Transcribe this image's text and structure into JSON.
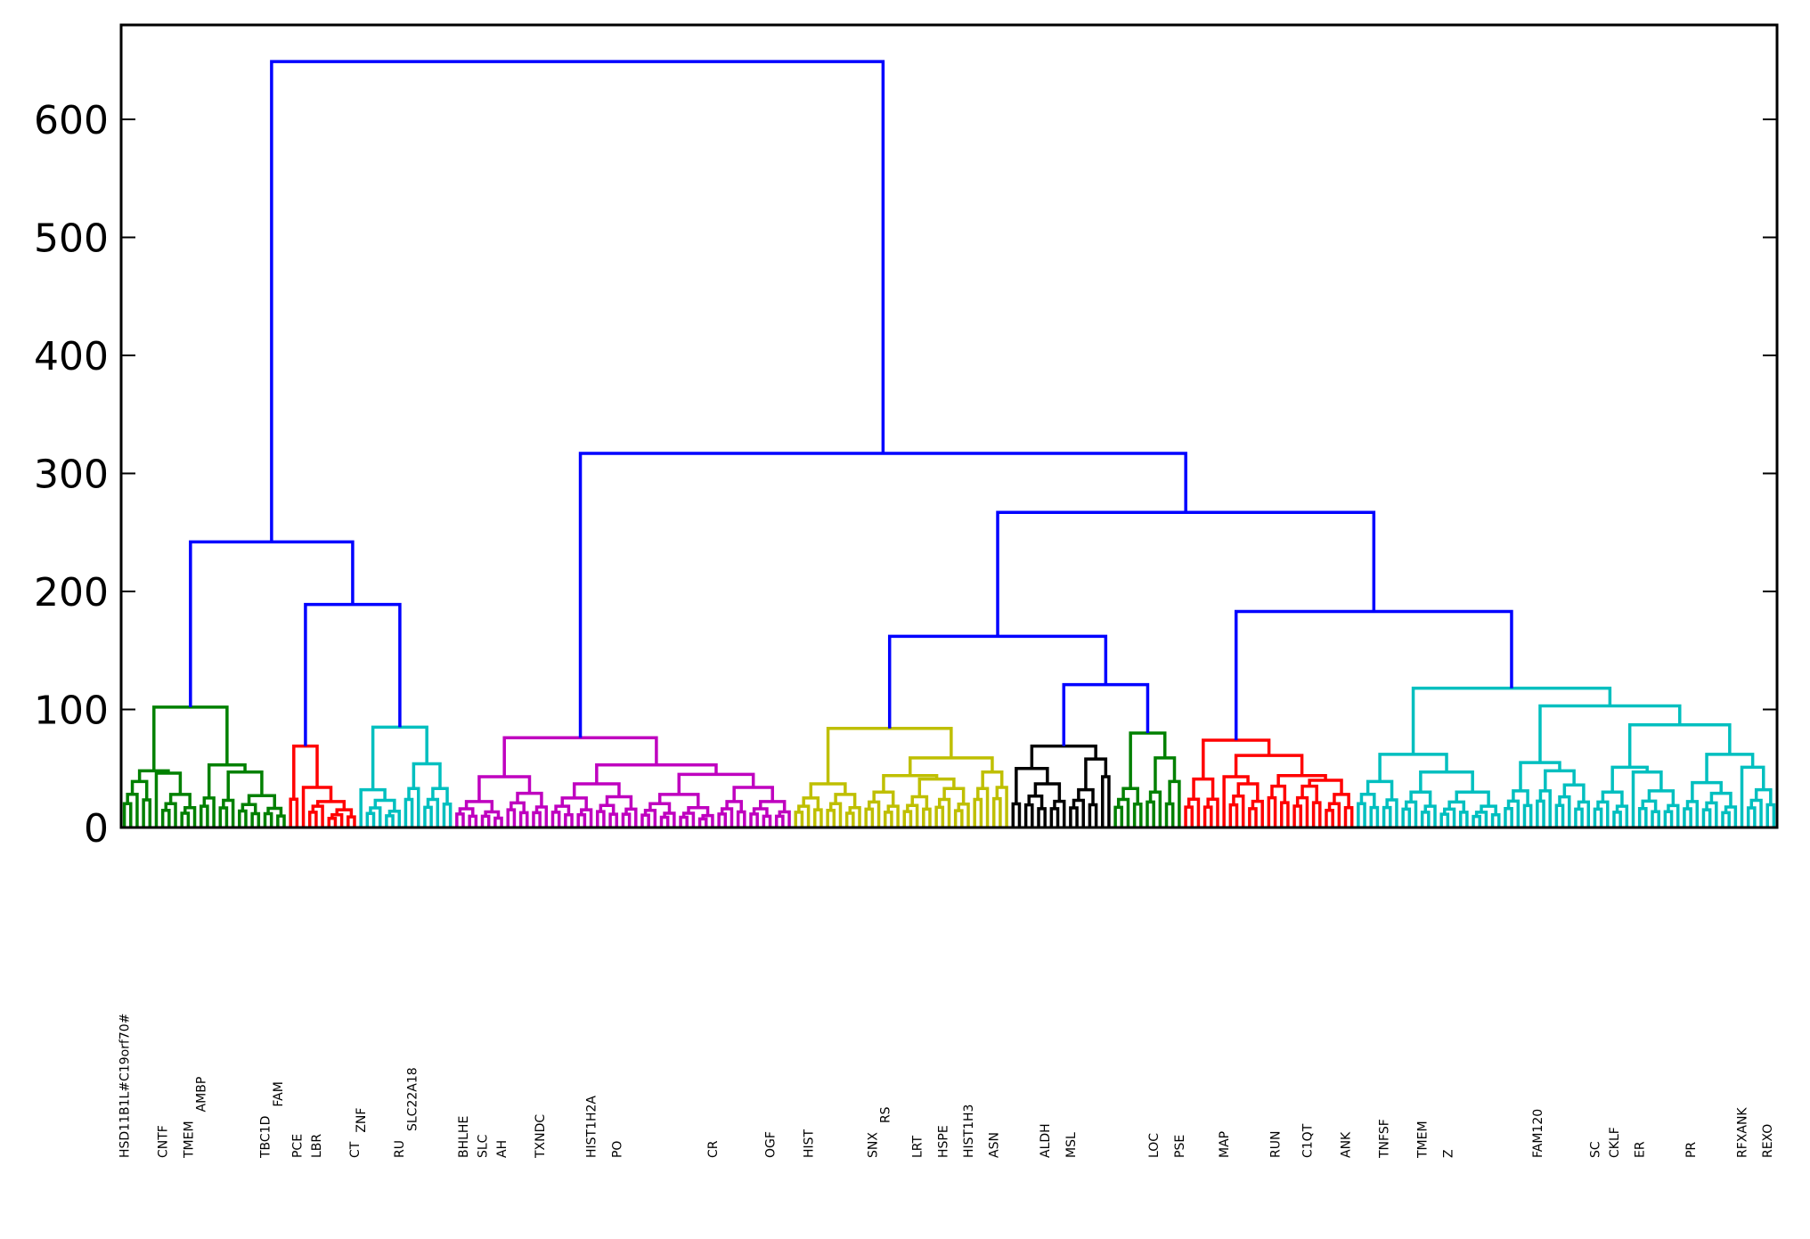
{
  "chart_data": {
    "type": "dendrogram",
    "title": "",
    "xlabel": "",
    "ylabel": "",
    "ylim": [
      0,
      680
    ],
    "yticks": [
      0,
      100,
      200,
      300,
      400,
      500,
      600
    ],
    "grid": false,
    "legend": "none",
    "above_threshold_color": "#0000ff",
    "leaf_count": 259,
    "tree": {
      "h": 649,
      "c": [
        {
          "h": 242,
          "c": [
            {
              "color": "#008000",
              "h": 102,
              "c": [
                {
                  "h": 48,
                  "c": [
                    {
                      "h": 39,
                      "n": 5
                    },
                    {
                      "h": 46,
                      "c": [
                        1,
                        {
                          "h": 28,
                          "n": 6
                        }
                      ]
                    }
                  ]
                },
                {
                  "h": 53,
                  "c": [
                    {
                      "h": 25,
                      "n": 3
                    },
                    {
                      "h": 47,
                      "c": [
                        {
                          "h": 23,
                          "n": 3
                        },
                        {
                          "h": 27,
                          "n": 8
                        }
                      ]
                    }
                  ]
                }
              ]
            },
            {
              "h": 189,
              "c": [
                {
                  "color": "#ff0000",
                  "h": 69,
                  "c": [
                    {
                      "h": 24,
                      "n": 2
                    },
                    {
                      "h": 34,
                      "c": [
                        1,
                        {
                          "h": 22,
                          "c": [
                            {
                              "h": 18,
                              "n": 3
                            },
                            {
                              "h": 15,
                              "n": 5
                            }
                          ]
                        }
                      ]
                    }
                  ]
                },
                {
                  "color": "#00bfbf",
                  "h": 85,
                  "c": [
                    {
                      "h": 32,
                      "c": [
                        1,
                        {
                          "h": 23,
                          "n": 6
                        }
                      ]
                    },
                    {
                      "h": 54,
                      "c": [
                        {
                          "h": 33,
                          "n": 3
                        },
                        {
                          "h": 33,
                          "n": 5
                        }
                      ]
                    }
                  ]
                }
              ]
            }
          ]
        },
        {
          "h": 317,
          "c": [
            {
              "color": "#bf00bf",
              "h": 76,
              "c": [
                {
                  "h": 43,
                  "c": [
                    {
                      "h": 22,
                      "n": 8
                    },
                    {
                      "h": 29,
                      "n": 7
                    }
                  ]
                },
                {
                  "h": 53,
                  "c": [
                    {
                      "h": 37,
                      "c": [
                        {
                          "h": 25,
                          "n": 7
                        },
                        {
                          "h": 26,
                          "n": 7
                        }
                      ]
                    },
                    {
                      "h": 45,
                      "c": [
                        {
                          "h": 28,
                          "n": 12
                        },
                        {
                          "h": 34,
                          "c": [
                            {
                              "h": 22,
                              "n": 5
                            },
                            {
                              "h": 22,
                              "n": 7
                            }
                          ]
                        }
                      ]
                    }
                  ]
                }
              ]
            },
            {
              "h": 267,
              "c": [
                {
                  "h": 162,
                  "c": [
                    {
                      "color": "#bfbf00",
                      "h": 84,
                      "c": [
                        {
                          "h": 37,
                          "c": [
                            {
                              "h": 25,
                              "n": 5
                            },
                            {
                              "h": 28,
                              "n": 6
                            }
                          ]
                        },
                        {
                          "h": 59,
                          "c": [
                            {
                              "h": 44,
                              "c": [
                                {
                                  "h": 30,
                                  "n": 6
                                },
                                {
                                  "h": 41,
                                  "c": [
                                    {
                                      "h": 26,
                                      "n": 5
                                    },
                                    {
                                      "h": 33,
                                      "n": 6
                                    }
                                  ]
                                }
                              ]
                            },
                            {
                              "h": 47,
                              "c": [
                                {
                                  "h": 33,
                                  "n": 3
                                },
                                {
                                  "h": 34,
                                  "n": 3
                                }
                              ]
                            }
                          ]
                        }
                      ]
                    },
                    {
                      "h": 121,
                      "c": [
                        {
                          "color": "#000000",
                          "h": 69,
                          "c": [
                            {
                              "h": 50,
                              "c": [
                                {
                                  "h": 20,
                                  "n": 2
                                },
                                {
                                  "h": 37,
                                  "n": 7
                                }
                              ]
                            },
                            {
                              "h": 58,
                              "c": [
                                {
                                  "h": 32,
                                  "n": 5
                                },
                                {
                                  "h": 43,
                                  "n": 2
                                }
                              ]
                            }
                          ]
                        },
                        {
                          "color": "#008000",
                          "h": 80,
                          "c": [
                            {
                              "h": 33,
                              "n": 5
                            },
                            {
                              "h": 59,
                              "c": [
                                {
                                  "h": 30,
                                  "n": 3
                                },
                                {
                                  "h": 39,
                                  "c": [
                                    {
                                      "h": 20,
                                      "n": 2
                                    },
                                    1
                                  ]
                                }
                              ]
                            }
                          ]
                        }
                      ]
                    }
                  ]
                },
                {
                  "h": 183,
                  "c": [
                    {
                      "color": "#ff0000",
                      "h": 74,
                      "c": [
                        {
                          "h": 41,
                          "c": [
                            {
                              "h": 24,
                              "n": 3
                            },
                            {
                              "h": 24,
                              "n": 3
                            }
                          ]
                        },
                        {
                          "h": 61,
                          "c": [
                            {
                              "h": 43,
                              "c": [
                                1,
                                {
                                  "h": 37,
                                  "n": 6
                                }
                              ]
                            },
                            {
                              "h": 44,
                              "c": [
                                {
                                  "h": 35,
                                  "n": 4
                                },
                                {
                                  "h": 40,
                                  "c": [
                                    {
                                      "h": 35,
                                      "n": 5
                                    },
                                    {
                                      "h": 28,
                                      "n": 5
                                    }
                                  ]
                                }
                              ]
                            }
                          ]
                        }
                      ]
                    },
                    {
                      "color": "#00bfbf",
                      "h": 118,
                      "c": [
                        {
                          "h": 62,
                          "c": [
                            {
                              "h": 39,
                              "n": 7
                            },
                            {
                              "h": 47,
                              "c": [
                                {
                                  "h": 30,
                                  "n": 6
                                },
                                {
                                  "h": 30,
                                  "n": 10
                                }
                              ]
                            }
                          ]
                        },
                        {
                          "h": 103,
                          "c": [
                            {
                              "h": 55,
                              "c": [
                                {
                                  "h": 31,
                                  "n": 5
                                },
                                {
                                  "h": 48,
                                  "c": [
                                    {
                                      "h": 31,
                                      "n": 3
                                    },
                                    {
                                      "h": 36,
                                      "n": 6
                                    }
                                  ]
                                }
                              ]
                            },
                            {
                              "h": 87,
                              "c": [
                                {
                                  "h": 51,
                                  "c": [
                                    {
                                      "h": 30,
                                      "n": 6
                                    },
                                    {
                                      "h": 47,
                                      "c": [
                                        1,
                                        {
                                          "h": 31,
                                          "n": 7
                                        }
                                      ]
                                    }
                                  ]
                                },
                                {
                                  "h": 62,
                                  "c": [
                                    {
                                      "h": 38,
                                      "c": [
                                        {
                                          "h": 22,
                                          "n": 3
                                        },
                                        {
                                          "h": 29,
                                          "n": 6
                                        }
                                      ]
                                    },
                                    {
                                      "h": 51,
                                      "c": [
                                        1,
                                        {
                                          "h": 32,
                                          "n": 5
                                        }
                                      ]
                                    }
                                  ]
                                }
                              ]
                            }
                          ]
                        }
                      ]
                    }
                  ]
                }
              ]
            }
          ]
        }
      ]
    },
    "leaf_labels": [
      {
        "i": 0,
        "text": "HSD11B1L#C19orf70#"
      },
      {
        "i": 6,
        "text": "CNTF"
      },
      {
        "i": 10,
        "text": "TMEM"
      },
      {
        "i": 12,
        "text": "AMBP"
      },
      {
        "i": 22,
        "text": "TBC1D"
      },
      {
        "i": 24,
        "text": "FAM"
      },
      {
        "i": 27,
        "text": "PCE"
      },
      {
        "i": 30,
        "text": "LBR"
      },
      {
        "i": 36,
        "text": "CT"
      },
      {
        "i": 37,
        "text": "ZNF"
      },
      {
        "i": 43,
        "text": "RU"
      },
      {
        "i": 45,
        "text": "SLC22A18"
      },
      {
        "i": 53,
        "text": "BHLHE"
      },
      {
        "i": 56,
        "text": "SLC"
      },
      {
        "i": 59,
        "text": "AH"
      },
      {
        "i": 65,
        "text": "TXNDC"
      },
      {
        "i": 73,
        "text": "HIST1H2A"
      },
      {
        "i": 77,
        "text": "PO"
      },
      {
        "i": 92,
        "text": "CR"
      },
      {
        "i": 101,
        "text": "OGF"
      },
      {
        "i": 107,
        "text": "HIST"
      },
      {
        "i": 117,
        "text": "SNX"
      },
      {
        "i": 119,
        "text": "RS"
      },
      {
        "i": 124,
        "text": "LRT"
      },
      {
        "i": 128,
        "text": "HSPE"
      },
      {
        "i": 132,
        "text": "HIST1H3"
      },
      {
        "i": 136,
        "text": "ASN"
      },
      {
        "i": 144,
        "text": "ALDH"
      },
      {
        "i": 148,
        "text": "MSL"
      },
      {
        "i": 161,
        "text": "LOC"
      },
      {
        "i": 165,
        "text": "PSE"
      },
      {
        "i": 172,
        "text": "MAP"
      },
      {
        "i": 180,
        "text": "RUN"
      },
      {
        "i": 185,
        "text": "C1QT"
      },
      {
        "i": 191,
        "text": "ANK"
      },
      {
        "i": 197,
        "text": "TNFSF"
      },
      {
        "i": 203,
        "text": "TMEM"
      },
      {
        "i": 207,
        "text": "Z"
      },
      {
        "i": 221,
        "text": "FAM120"
      },
      {
        "i": 230,
        "text": "SC"
      },
      {
        "i": 233,
        "text": "CKLF"
      },
      {
        "i": 237,
        "text": "ER"
      },
      {
        "i": 245,
        "text": "PR"
      },
      {
        "i": 253,
        "text": "RFXANK"
      },
      {
        "i": 257,
        "text": "REXO"
      }
    ]
  }
}
